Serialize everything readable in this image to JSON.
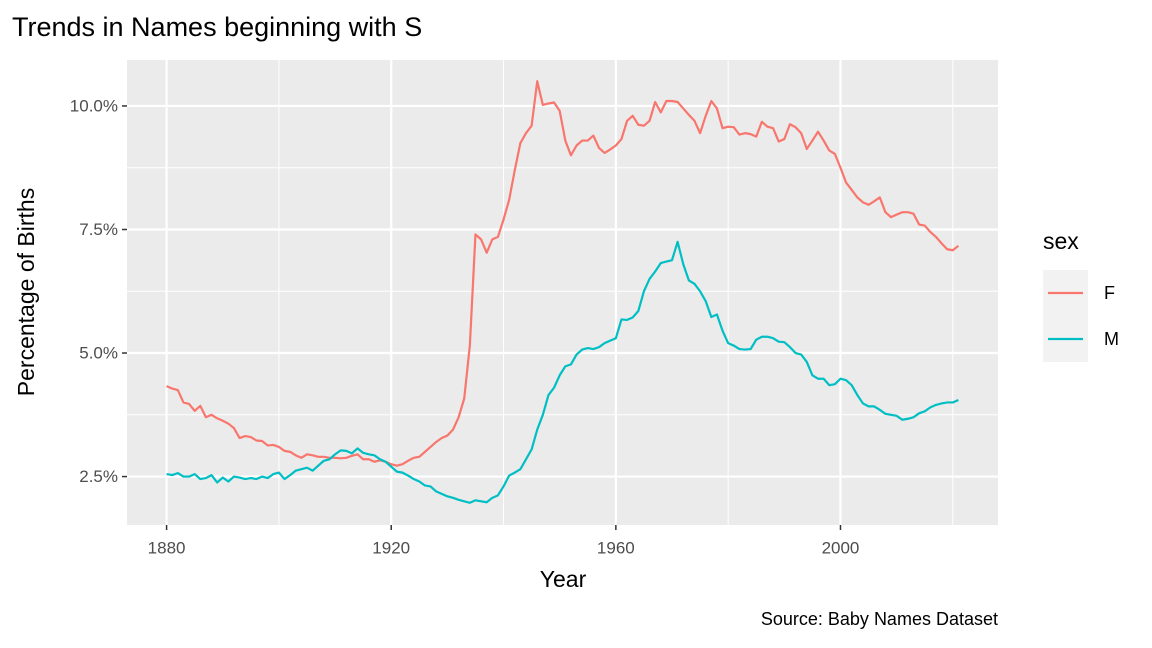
{
  "chart_data": {
    "type": "line",
    "title": "Trends in Names beginning with S",
    "x_label": "Year",
    "y_label": "Percentage of Births",
    "caption": "Source: Baby Names Dataset",
    "legend_title": "sex",
    "legend_position": "right",
    "grid": true,
    "xlim": [
      1872.95,
      2028.05
    ],
    "ylim": [
      1.52,
      10.93
    ],
    "xticks": [
      1880,
      1920,
      1960,
      2000
    ],
    "yticks": [
      {
        "value": 2.5,
        "label": "2.5%"
      },
      {
        "value": 5.0,
        "label": "5.0%"
      },
      {
        "value": 7.5,
        "label": "7.5%"
      },
      {
        "value": 10.0,
        "label": "10.0%"
      }
    ],
    "x": [
      1880,
      1881,
      1882,
      1883,
      1884,
      1885,
      1886,
      1887,
      1888,
      1889,
      1890,
      1891,
      1892,
      1893,
      1894,
      1895,
      1896,
      1897,
      1898,
      1899,
      1900,
      1901,
      1902,
      1903,
      1904,
      1905,
      1906,
      1907,
      1908,
      1909,
      1910,
      1911,
      1912,
      1913,
      1914,
      1915,
      1916,
      1917,
      1918,
      1919,
      1920,
      1921,
      1922,
      1923,
      1924,
      1925,
      1926,
      1927,
      1928,
      1929,
      1930,
      1931,
      1932,
      1933,
      1934,
      1935,
      1936,
      1937,
      1938,
      1939,
      1940,
      1941,
      1942,
      1943,
      1944,
      1945,
      1946,
      1947,
      1948,
      1949,
      1950,
      1951,
      1952,
      1953,
      1954,
      1955,
      1956,
      1957,
      1958,
      1959,
      1960,
      1961,
      1962,
      1963,
      1964,
      1965,
      1966,
      1967,
      1968,
      1969,
      1970,
      1971,
      1972,
      1973,
      1974,
      1975,
      1976,
      1977,
      1978,
      1979,
      1980,
      1981,
      1982,
      1983,
      1984,
      1985,
      1986,
      1987,
      1988,
      1989,
      1990,
      1991,
      1992,
      1993,
      1994,
      1995,
      1996,
      1997,
      1998,
      1999,
      2000,
      2001,
      2002,
      2003,
      2004,
      2005,
      2006,
      2007,
      2008,
      2009,
      2010,
      2011,
      2012,
      2013,
      2014,
      2015,
      2016,
      2017,
      2018,
      2019,
      2020,
      2021
    ],
    "series": [
      {
        "name": "F",
        "color": "#f8766d",
        "values": [
          4.33,
          4.28,
          4.25,
          4.0,
          3.97,
          3.83,
          3.93,
          3.7,
          3.75,
          3.68,
          3.63,
          3.57,
          3.48,
          3.28,
          3.32,
          3.3,
          3.23,
          3.22,
          3.13,
          3.14,
          3.1,
          3.02,
          3.0,
          2.93,
          2.88,
          2.95,
          2.93,
          2.9,
          2.9,
          2.88,
          2.88,
          2.87,
          2.88,
          2.92,
          2.95,
          2.85,
          2.85,
          2.8,
          2.83,
          2.8,
          2.75,
          2.72,
          2.75,
          2.82,
          2.88,
          2.9,
          3.0,
          3.1,
          3.2,
          3.28,
          3.33,
          3.45,
          3.7,
          4.08,
          5.15,
          7.4,
          7.3,
          7.03,
          7.3,
          7.35,
          7.7,
          8.1,
          8.7,
          9.25,
          9.45,
          9.6,
          10.5,
          10.02,
          10.05,
          10.07,
          9.9,
          9.3,
          9.0,
          9.2,
          9.3,
          9.3,
          9.4,
          9.15,
          9.05,
          9.12,
          9.2,
          9.33,
          9.7,
          9.8,
          9.62,
          9.6,
          9.7,
          10.08,
          9.87,
          10.1,
          10.1,
          10.08,
          9.95,
          9.82,
          9.7,
          9.45,
          9.8,
          10.1,
          9.95,
          9.55,
          9.58,
          9.57,
          9.42,
          9.45,
          9.43,
          9.38,
          9.68,
          9.58,
          9.55,
          9.28,
          9.33,
          9.63,
          9.57,
          9.45,
          9.13,
          9.3,
          9.48,
          9.3,
          9.1,
          9.03,
          8.75,
          8.45,
          8.3,
          8.15,
          8.05,
          8.0,
          8.07,
          8.15,
          7.85,
          7.75,
          7.8,
          7.85,
          7.85,
          7.82,
          7.6,
          7.58,
          7.45,
          7.35,
          7.22,
          7.1,
          7.08,
          7.17
        ]
      },
      {
        "name": "M",
        "color": "#00bfc4",
        "values": [
          2.55,
          2.53,
          2.57,
          2.5,
          2.5,
          2.55,
          2.45,
          2.47,
          2.53,
          2.38,
          2.48,
          2.4,
          2.5,
          2.48,
          2.45,
          2.47,
          2.45,
          2.5,
          2.47,
          2.55,
          2.58,
          2.45,
          2.53,
          2.62,
          2.65,
          2.68,
          2.62,
          2.72,
          2.82,
          2.85,
          2.95,
          3.03,
          3.02,
          2.97,
          3.07,
          2.98,
          2.95,
          2.93,
          2.85,
          2.8,
          2.7,
          2.6,
          2.58,
          2.52,
          2.45,
          2.4,
          2.32,
          2.3,
          2.2,
          2.15,
          2.1,
          2.07,
          2.03,
          2.0,
          1.97,
          2.02,
          2.0,
          1.98,
          2.07,
          2.12,
          2.3,
          2.52,
          2.58,
          2.65,
          2.85,
          3.05,
          3.45,
          3.75,
          4.15,
          4.3,
          4.55,
          4.73,
          4.77,
          4.97,
          5.07,
          5.1,
          5.08,
          5.12,
          5.2,
          5.25,
          5.3,
          5.68,
          5.67,
          5.72,
          5.85,
          6.25,
          6.5,
          6.65,
          6.82,
          6.85,
          6.88,
          7.25,
          6.8,
          6.47,
          6.4,
          6.25,
          6.05,
          5.73,
          5.78,
          5.45,
          5.2,
          5.15,
          5.08,
          5.07,
          5.08,
          5.27,
          5.33,
          5.33,
          5.3,
          5.23,
          5.22,
          5.12,
          5.0,
          4.97,
          4.82,
          4.55,
          4.48,
          4.48,
          4.35,
          4.37,
          4.48,
          4.45,
          4.35,
          4.15,
          3.98,
          3.92,
          3.92,
          3.85,
          3.77,
          3.75,
          3.73,
          3.65,
          3.67,
          3.7,
          3.78,
          3.82,
          3.9,
          3.95,
          3.98,
          4.0,
          4.0,
          4.05
        ]
      }
    ]
  }
}
